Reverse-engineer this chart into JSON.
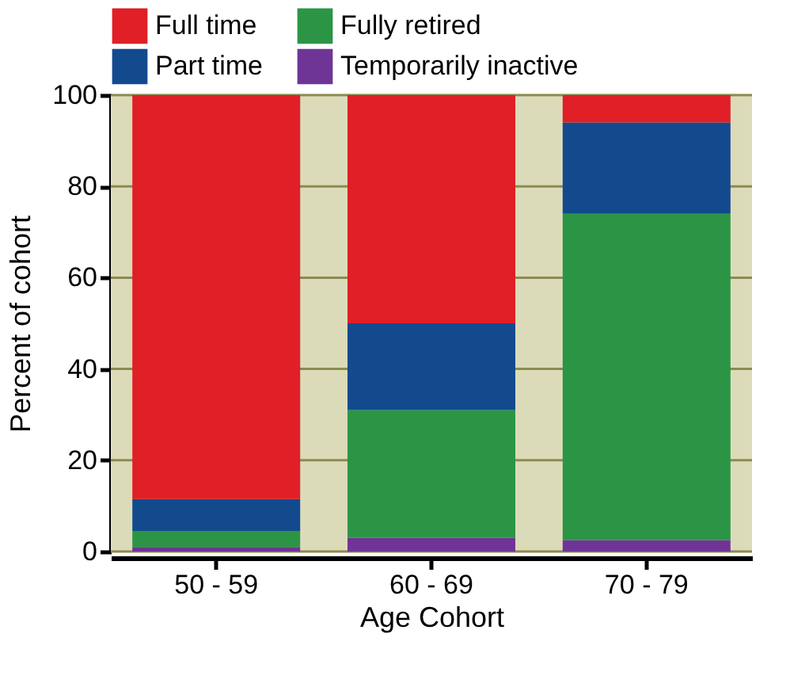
{
  "chart_data": {
    "type": "bar",
    "stacked": true,
    "xlabel": "Age Cohort",
    "ylabel": "Percent of cohort",
    "categories": [
      "50 - 59",
      "60 - 69",
      "70 - 79"
    ],
    "series": [
      {
        "name": "Temporarily inactive",
        "color": "#6f3596",
        "values": [
          1,
          3,
          2.5
        ]
      },
      {
        "name": "Fully retired",
        "color": "#2b9545",
        "values": [
          3.5,
          28,
          71.5
        ]
      },
      {
        "name": "Part time",
        "color": "#134a8e",
        "values": [
          7,
          19,
          20
        ]
      },
      {
        "name": "Full time",
        "color": "#e01f26",
        "values": [
          88.5,
          50,
          6
        ]
      }
    ],
    "bands": [
      {
        "axis": "y",
        "from": 0,
        "to": 100,
        "color": "#dcdbb9"
      }
    ],
    "ylim": [
      0,
      100
    ],
    "yticks": [
      0,
      20,
      40,
      60,
      80,
      100
    ],
    "grid": "y",
    "legend": "top"
  }
}
